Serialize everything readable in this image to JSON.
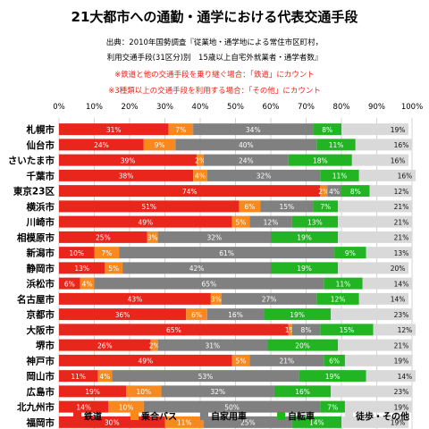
{
  "chart_data": {
    "type": "bar",
    "orientation": "horizontal",
    "stacked": true,
    "title": "21大都市への通勤・通学における代表交通手段",
    "subtitle_lines": [
      "出典：2010年国勢調査『従業地・通学地による常住市区町村，",
      "利用交通手段(31区分)別　15歳以上自宅外就業者・通学者数』"
    ],
    "notes": [
      "※鉄道と他の交通手段を乗り継ぐ場合：「鉄道」にカウント",
      "※3種類以上の交通手段を利用する場合：「その他」にカウント"
    ],
    "note_color": "#e8261c",
    "xlim": [
      0,
      100
    ],
    "x_ticks": [
      "0%",
      "10%",
      "20%",
      "30%",
      "40%",
      "50%",
      "60%",
      "70%",
      "80%",
      "90%",
      "100%"
    ],
    "grid": true,
    "legend_position": "bottom",
    "categories": [
      "札幌市",
      "仙台市",
      "さいたま市",
      "千葉市",
      "東京23区",
      "横浜市",
      "川崎市",
      "相模原市",
      "新潟市",
      "静岡市",
      "浜松市",
      "名古屋市",
      "京都市",
      "大阪市",
      "堺市",
      "神戸市",
      "岡山市",
      "広島市",
      "北九州市",
      "福岡市"
    ],
    "series": [
      {
        "name": "鉄道",
        "color": "#e8261c",
        "values": [
          31,
          24,
          39,
          38,
          74,
          51,
          49,
          25,
          10,
          13,
          6,
          43,
          36,
          65,
          26,
          49,
          11,
          19,
          14,
          30
        ],
        "labels": [
          "31%",
          "24%",
          "39%",
          "38%",
          "74%",
          "51%",
          "49%",
          "25%",
          "10%",
          "13%",
          "6%",
          "43%",
          "36%",
          "65%",
          "26%",
          "49%",
          "11%",
          "19%",
          "14%",
          "30%"
        ]
      },
      {
        "name": "乗合バス",
        "color": "#f7891e",
        "values": [
          7,
          9,
          2,
          4,
          2,
          6,
          5,
          3,
          7,
          5,
          4,
          3,
          6,
          1,
          2,
          5,
          4,
          10,
          10,
          11
        ],
        "labels": [
          "7%",
          "9%",
          "2%",
          "4%",
          "2%",
          "6%",
          "5%",
          "3%",
          "7%",
          "5%",
          "4%",
          "3%",
          "6%",
          "1%",
          "2%",
          "5%",
          "4%",
          "10%",
          "10%",
          "11%"
        ]
      },
      {
        "name": "自家用車",
        "color": "#808080",
        "values": [
          34,
          40,
          24,
          32,
          4,
          15,
          12,
          32,
          61,
          42,
          65,
          27,
          16,
          8,
          31,
          21,
          53,
          32,
          50,
          25
        ],
        "labels": [
          "34%",
          "40%",
          "24%",
          "32%",
          "4%",
          "15%",
          "12%",
          "32%",
          "61%",
          "42%",
          "65%",
          "27%",
          "16%",
          "8%",
          "31%",
          "21%",
          "53%",
          "32%",
          "50%",
          "25%"
        ]
      },
      {
        "name": "自転車",
        "color": "#22b422",
        "values": [
          8,
          11,
          18,
          11,
          8,
          7,
          13,
          19,
          9,
          19,
          11,
          12,
          19,
          15,
          20,
          6,
          19,
          16,
          7,
          14
        ],
        "labels": [
          "8%",
          "11%",
          "18%",
          "11%",
          "8%",
          "7%",
          "13%",
          "19%",
          "9%",
          "19%",
          "11%",
          "12%",
          "19%",
          "15%",
          "20%",
          "6%",
          "19%",
          "16%",
          "7%",
          "14%"
        ]
      },
      {
        "name": "徒歩・その他",
        "color": "#d9d9d9",
        "values": [
          19,
          16,
          16,
          16,
          12,
          21,
          21,
          21,
          13,
          20,
          14,
          14,
          23,
          12,
          21,
          19,
          14,
          23,
          19,
          19
        ],
        "labels": [
          "19%",
          "16%",
          "16%",
          "16%",
          "12%",
          "21%",
          "21%",
          "21%",
          "13%",
          "20%",
          "14%",
          "14%",
          "23%",
          "12%",
          "21%",
          "19%",
          "14%",
          "23%",
          "19%",
          "19%"
        ]
      }
    ]
  }
}
